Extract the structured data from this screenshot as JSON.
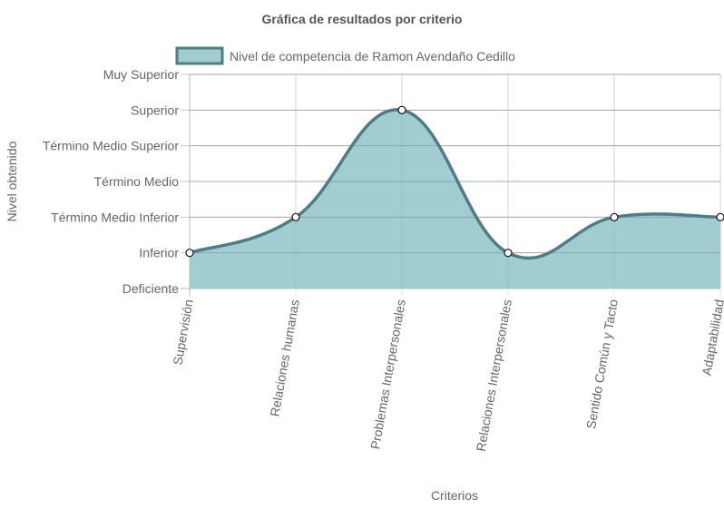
{
  "chart_data": {
    "type": "area",
    "title": "Gráfica de resultados por criterio",
    "xlabel": "Criterios",
    "ylabel": "Nivel obtenido",
    "categories": [
      "Supervisión",
      "Relaciones humanas",
      "Problemas Interpersonales",
      "Relaciones Interpersonales",
      "Sentido Común y Tacto",
      "Adaptabilidad"
    ],
    "y_levels": [
      "Deficiente",
      "Inferior",
      "Término Medio Inferior",
      "Término Medio",
      "Término Medio Superior",
      "Superior",
      "Muy Superior"
    ],
    "series": [
      {
        "name": "Nivel de competencia de Ramon Avendaño Cedillo",
        "values": [
          1,
          2,
          5,
          1,
          2,
          2
        ],
        "fill_color": "#a2cdd0",
        "line_color": "#4f7d85"
      }
    ],
    "ylim": [
      0,
      6
    ],
    "grid": true,
    "legend_position": "top"
  }
}
